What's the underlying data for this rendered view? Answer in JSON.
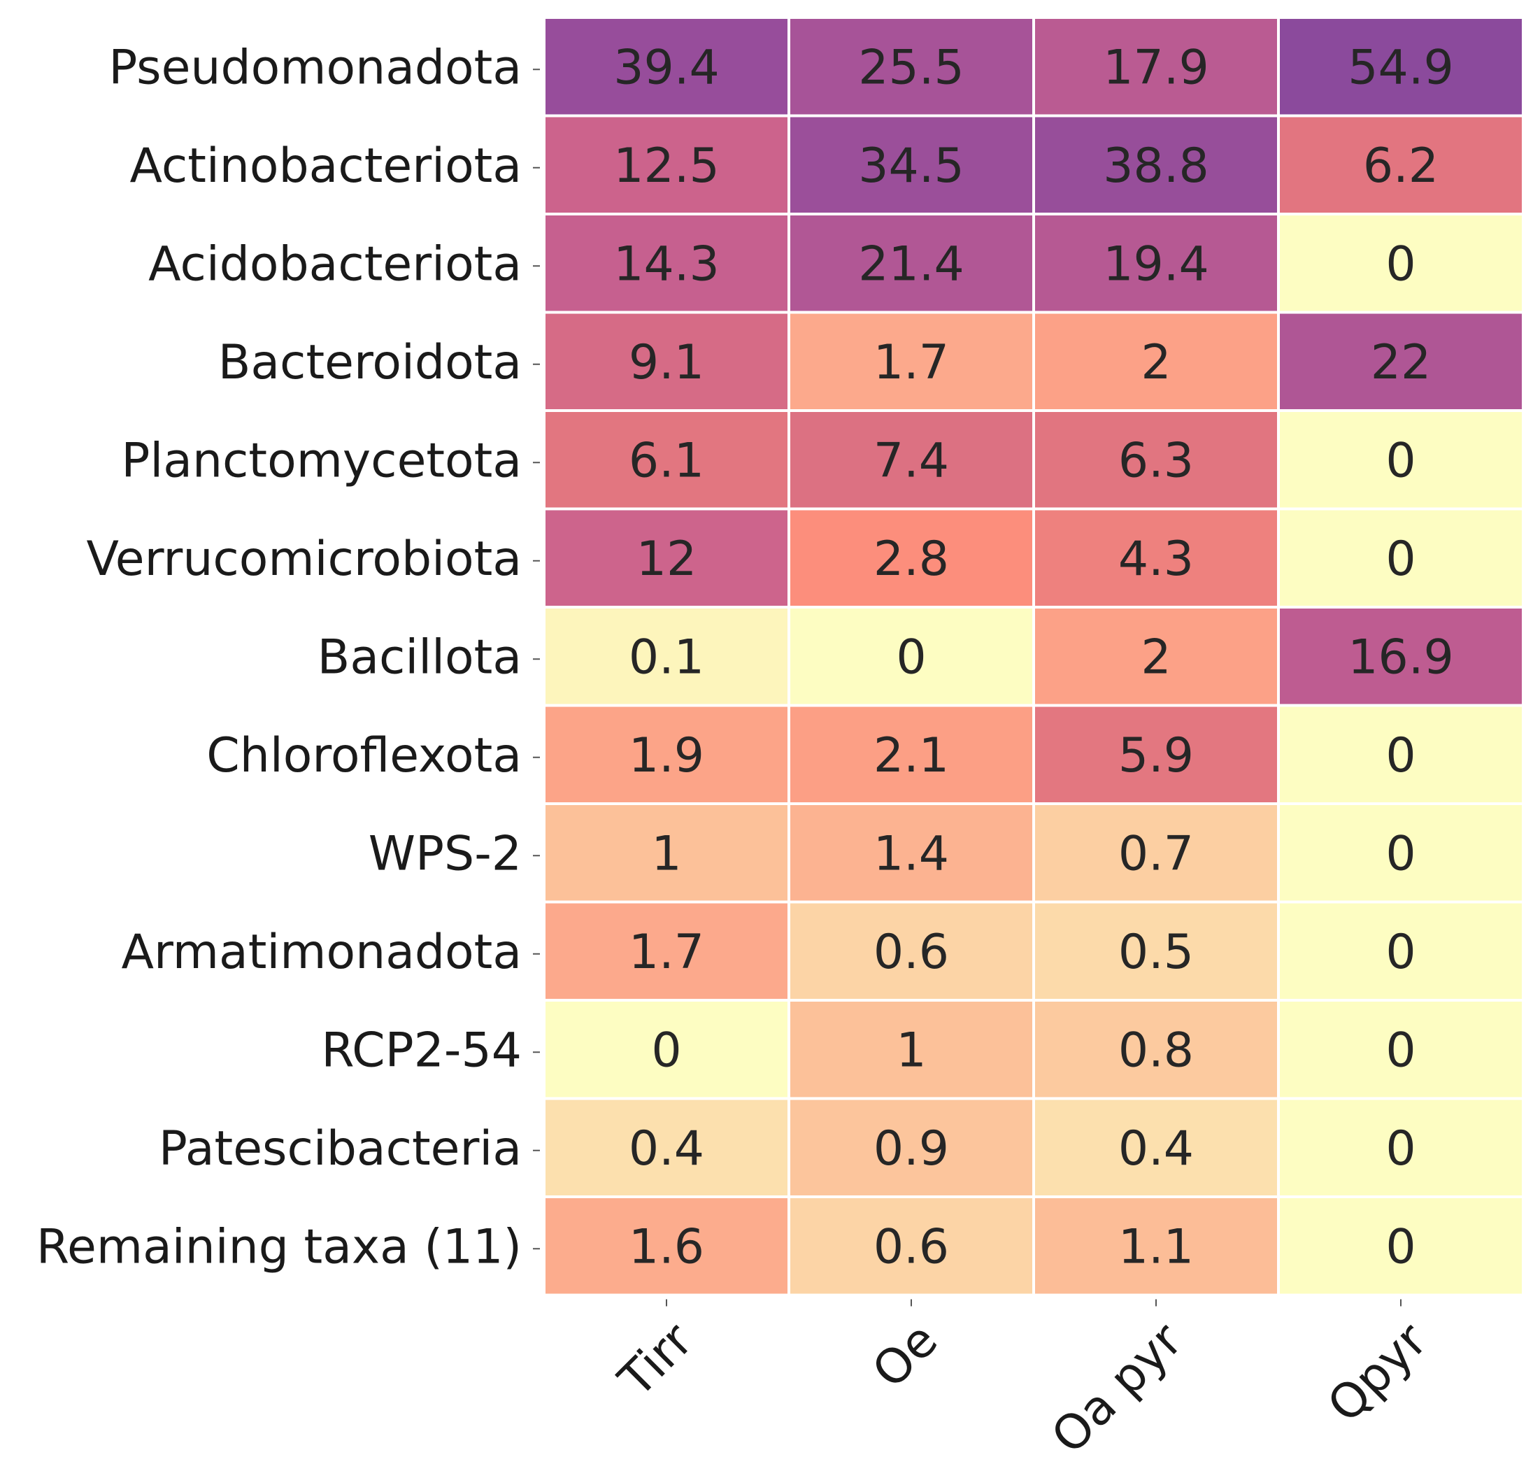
{
  "chart_data": {
    "type": "heatmap",
    "title": "",
    "xlabel": "",
    "ylabel": "",
    "columns": [
      "Tirr",
      "Oe",
      "Oa pyr",
      "Qpyr"
    ],
    "rows": [
      "Pseudomonadota",
      "Actinobacteriota",
      "Acidobacteriota",
      "Bacteroidota",
      "Planctomycetota",
      "Verrucomicrobiota",
      "Bacillota",
      "Chloroflexota",
      "WPS-2",
      "Armatimonadota",
      "RCP2-54",
      "Patescibacteria",
      "Remaining taxa (11)"
    ],
    "values": [
      [
        39.4,
        25.5,
        17.9,
        54.9
      ],
      [
        12.5,
        34.5,
        38.8,
        6.2
      ],
      [
        14.3,
        21.4,
        19.4,
        0
      ],
      [
        9.1,
        1.7,
        2,
        22
      ],
      [
        6.1,
        7.4,
        6.3,
        0
      ],
      [
        12,
        2.8,
        4.3,
        0
      ],
      [
        0.1,
        0,
        2,
        16.9
      ],
      [
        1.9,
        2.1,
        5.9,
        0
      ],
      [
        1,
        1.4,
        0.7,
        0
      ],
      [
        1.7,
        0.6,
        0.5,
        0
      ],
      [
        0,
        1,
        0.8,
        0
      ],
      [
        0.4,
        0.9,
        0.4,
        0
      ],
      [
        1.6,
        0.6,
        1.1,
        0
      ]
    ],
    "cell_labels": [
      [
        "39.4",
        "25.5",
        "17.9",
        "54.9"
      ],
      [
        "12.5",
        "34.5",
        "38.8",
        "6.2"
      ],
      [
        "14.3",
        "21.4",
        "19.4",
        "0"
      ],
      [
        "9.1",
        "1.7",
        "2",
        "22"
      ],
      [
        "6.1",
        "7.4",
        "6.3",
        "0"
      ],
      [
        "12",
        "2.8",
        "4.3",
        "0"
      ],
      [
        "0.1",
        "0",
        "2",
        "16.9"
      ],
      [
        "1.9",
        "2.1",
        "5.9",
        "0"
      ],
      [
        "1",
        "1.4",
        "0.7",
        "0"
      ],
      [
        "1.7",
        "0.6",
        "0.5",
        "0"
      ],
      [
        "0",
        "1",
        "0.8",
        "0"
      ],
      [
        "0.4",
        "0.9",
        "0.4",
        "0"
      ],
      [
        "1.6",
        "0.6",
        "1.1",
        "0"
      ]
    ],
    "colormap": "magma-like, log-scaled (light yellow = 0, purple = high)",
    "color_stops": [
      "#fdfdc2",
      "#fcc39a",
      "#fc8e7c",
      "#e07480",
      "#c9618e",
      "#a35199",
      "#8b4a9c"
    ],
    "grid": false,
    "legend": "none"
  }
}
